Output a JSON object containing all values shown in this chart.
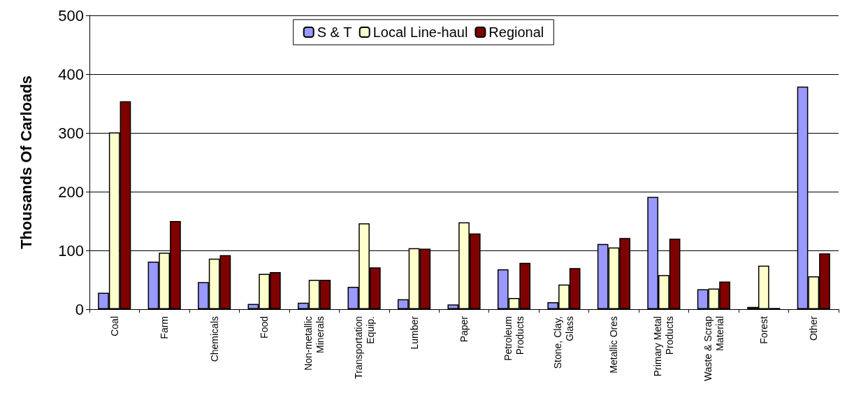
{
  "chart_data": {
    "type": "bar",
    "ylabel": "Thousands Of Carloads",
    "categories": [
      "Coal",
      "Farm",
      "Chemicals",
      "Food",
      "Non-metallic Minerals",
      "Transportation Equip.",
      "Lumber",
      "Paper",
      "Petroleum Products",
      "Stone, Clay, Glass",
      "Metallic Ores",
      "Primary Metal Products",
      "Waste & Scrap Material",
      "Forest",
      "Other"
    ],
    "series": [
      {
        "name": "S & T",
        "color": "#9999ff",
        "values": [
          28,
          81,
          46,
          9,
          11,
          38,
          17,
          8,
          68,
          12,
          111,
          191,
          34,
          4,
          379
        ]
      },
      {
        "name": "Local Line-haul",
        "color": "#ffffcc",
        "values": [
          301,
          96,
          86,
          60,
          50,
          146,
          104,
          148,
          19,
          42,
          105,
          58,
          35,
          74,
          56
        ]
      },
      {
        "name": "Regional",
        "color": "#800000",
        "values": [
          354,
          150,
          92,
          63,
          50,
          71,
          103,
          129,
          79,
          70,
          121,
          120,
          47,
          2,
          95
        ]
      }
    ],
    "ylim": [
      0,
      500
    ],
    "yticks": [
      0,
      100,
      200,
      300,
      400,
      500
    ],
    "grid": "y",
    "legend": "top"
  }
}
